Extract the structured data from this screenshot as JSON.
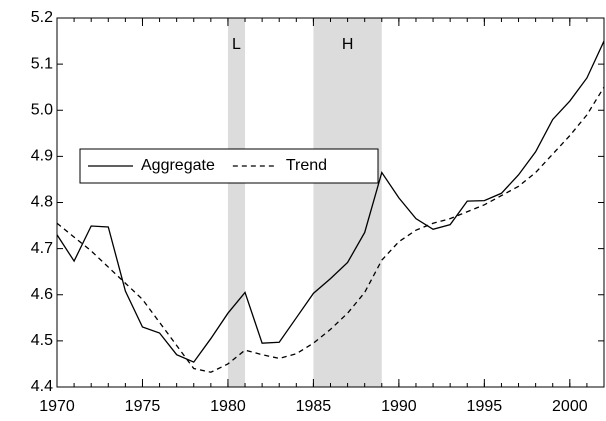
{
  "chart_data": {
    "type": "line",
    "x": [
      1970,
      1971,
      1972,
      1973,
      1974,
      1975,
      1976,
      1977,
      1978,
      1979,
      1980,
      1981,
      1982,
      1983,
      1984,
      1985,
      1986,
      1987,
      1988,
      1989,
      1990,
      1991,
      1992,
      1993,
      1994,
      1995,
      1996,
      1997,
      1998,
      1999,
      2000,
      2001,
      2002
    ],
    "series": [
      {
        "name": "Aggregate",
        "color": "#000000",
        "dash": "solid",
        "values": [
          4.73,
          4.673,
          4.749,
          4.747,
          4.608,
          4.53,
          4.517,
          4.47,
          4.454,
          4.505,
          4.56,
          4.605,
          4.495,
          4.497,
          4.55,
          4.603,
          4.635,
          4.67,
          4.735,
          4.865,
          4.81,
          4.765,
          4.742,
          4.752,
          4.803,
          4.804,
          4.82,
          4.86,
          4.91,
          4.98,
          5.02,
          5.07,
          5.15
        ]
      },
      {
        "name": "Trend",
        "color": "#000000",
        "dash": "dashed",
        "values": [
          4.755,
          4.725,
          4.695,
          4.66,
          4.625,
          4.59,
          4.54,
          4.49,
          4.44,
          4.432,
          4.45,
          4.48,
          4.47,
          4.462,
          4.472,
          4.495,
          4.525,
          4.56,
          4.605,
          4.675,
          4.715,
          4.74,
          4.755,
          4.765,
          4.78,
          4.795,
          4.815,
          4.835,
          4.865,
          4.905,
          4.945,
          4.99,
          5.05
        ]
      }
    ],
    "shaded": [
      {
        "from": 1980,
        "to": 1981,
        "label": "L",
        "color": "#dcdcdc"
      },
      {
        "from": 1985,
        "to": 1989,
        "label": "H",
        "color": "#dcdcdc"
      }
    ],
    "xlim": [
      1970,
      2002
    ],
    "xticks": [
      1970,
      1975,
      1980,
      1985,
      1990,
      1995,
      2000
    ],
    "ylim": [
      4.4,
      5.2
    ],
    "yticks": [
      4.4,
      4.5,
      4.6,
      4.7,
      4.8,
      4.9,
      {
        "value": 5,
        "label": "5.0"
      },
      5.1,
      5.2
    ],
    "grid": false,
    "legend": "center left"
  }
}
